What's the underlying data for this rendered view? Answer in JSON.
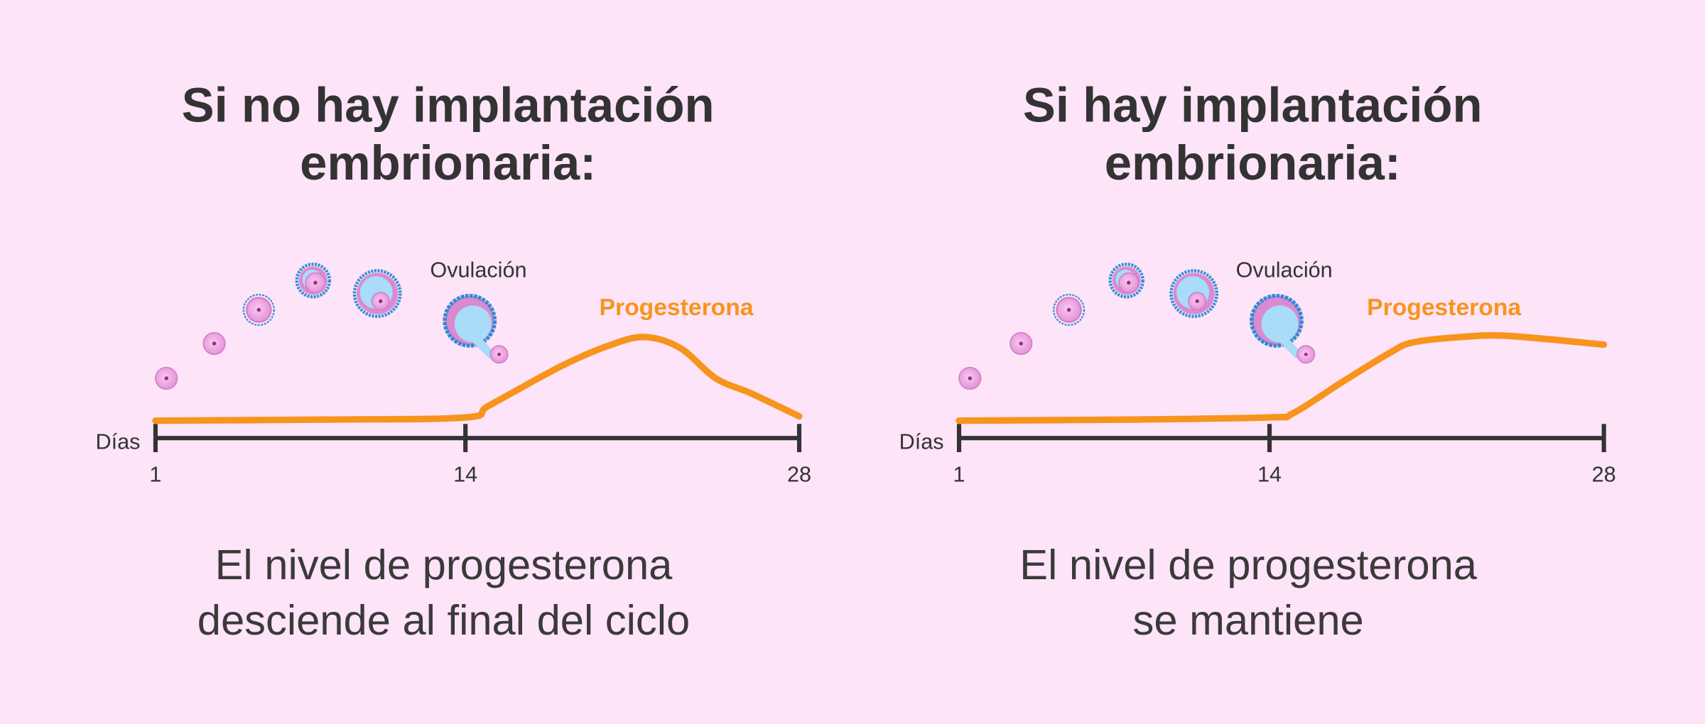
{
  "colors": {
    "background": "#fde4f8",
    "text": "#333333",
    "progesterone": "#f7941d",
    "axis": "#333333"
  },
  "panels": [
    {
      "title_line1": "Si no hay implantación",
      "title_line2": "embrionaria:",
      "ovulation_label": "Ovulación",
      "curve_label": "Progesterona",
      "axis_label": "Días",
      "ticks": [
        "1",
        "14",
        "28"
      ],
      "caption_line1": "El nivel de progesterona",
      "caption_line2": "desciende al final del ciclo"
    },
    {
      "title_line1": "Si hay implantación",
      "title_line2": "embrionaria:",
      "ovulation_label": "Ovulación",
      "curve_label": "Progesterona",
      "axis_label": "Días",
      "ticks": [
        "1",
        "14",
        "28"
      ],
      "caption_line1": "El nivel de progesterona",
      "caption_line2": "se mantiene"
    }
  ],
  "chart_data": [
    {
      "type": "line",
      "title": "Si no hay implantación embrionaria:",
      "xlabel": "Días",
      "ylabel": "",
      "xlim": [
        1,
        28
      ],
      "ylim": [
        0,
        10
      ],
      "x_ticks": [
        1,
        14,
        28
      ],
      "series": [
        {
          "name": "Progesterona",
          "x": [
            1,
            8,
            14,
            15,
            18,
            20,
            21.5,
            23,
            24.5,
            26,
            28
          ],
          "y": [
            1.3,
            1.4,
            1.6,
            2.7,
            6.3,
            8.2,
            9.0,
            8.0,
            5.2,
            3.8,
            1.7
          ]
        }
      ]
    },
    {
      "type": "line",
      "title": "Si hay implantación embrionaria:",
      "xlabel": "Días",
      "ylabel": "",
      "xlim": [
        1,
        28
      ],
      "ylim": [
        0,
        10
      ],
      "x_ticks": [
        1,
        14,
        28
      ],
      "series": [
        {
          "name": "Progesterona",
          "x": [
            1,
            8,
            14,
            15,
            17,
            19,
            20,
            22,
            24,
            28
          ],
          "y": [
            1.3,
            1.4,
            1.6,
            2.0,
            4.8,
            7.5,
            8.5,
            9.0,
            9.1,
            8.3
          ]
        }
      ]
    }
  ]
}
